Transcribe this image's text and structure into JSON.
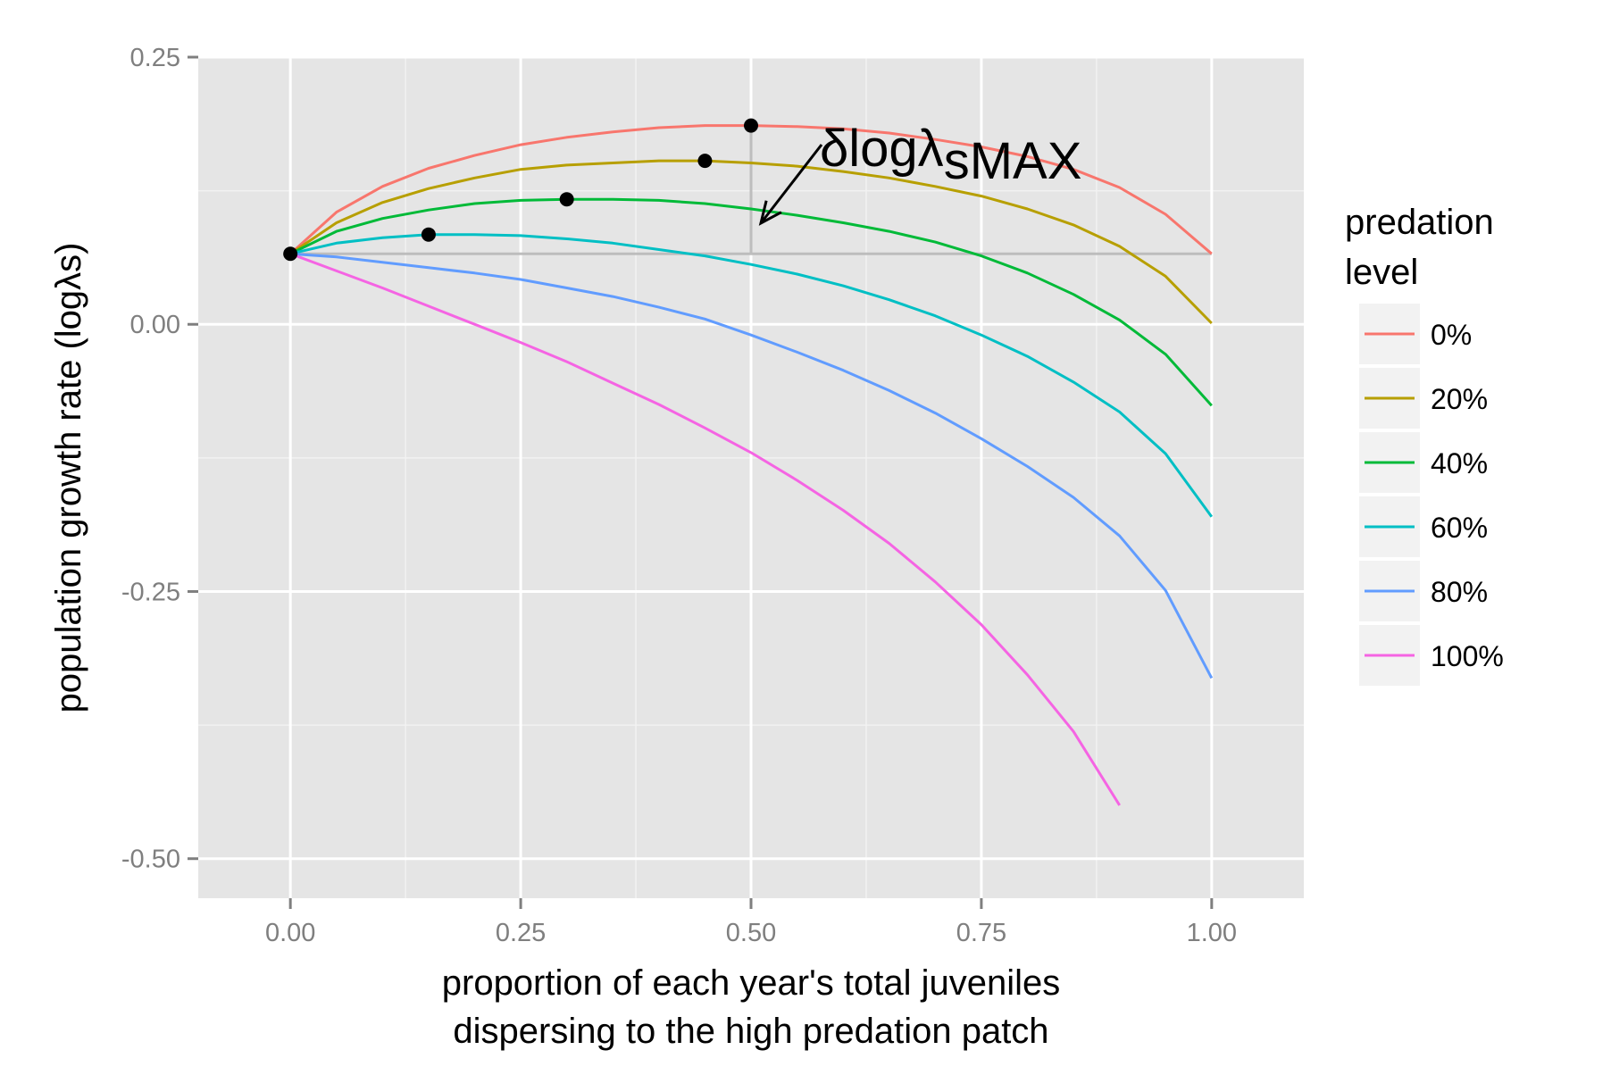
{
  "chart_data": {
    "type": "line",
    "xlabel_lines": [
      "proportion of each year's total juveniles",
      "dispersing to the high predation patch"
    ],
    "ylabel": "population growth rate (logλs)",
    "xlim": [
      -0.1,
      1.1
    ],
    "ylim": [
      -0.537,
      0.25
    ],
    "x_ticks": [
      0,
      0.25,
      0.5,
      0.75,
      1
    ],
    "x_tick_labels": [
      "0.00",
      "0.25",
      "0.50",
      "0.75",
      "1.00"
    ],
    "y_ticks": [
      0.25,
      0,
      -0.25,
      -0.5
    ],
    "y_tick_labels": [
      "0.25",
      "0.00",
      "-0.25",
      "-0.50"
    ],
    "grid": true,
    "legend": {
      "title_lines": [
        "predation",
        "level"
      ],
      "position": "right"
    },
    "x": [
      0,
      0.05,
      0.1,
      0.15,
      0.2,
      0.25,
      0.3,
      0.35,
      0.4,
      0.45,
      0.5,
      0.55,
      0.6,
      0.65,
      0.7,
      0.75,
      0.8,
      0.85,
      0.9,
      0.95,
      1.0
    ],
    "series": [
      {
        "name": "0%",
        "color": "#F8766D",
        "values": [
          0.066,
          0.105,
          0.129,
          0.146,
          0.158,
          0.168,
          0.175,
          0.18,
          0.184,
          0.186,
          0.186,
          0.185,
          0.183,
          0.179,
          0.173,
          0.166,
          0.157,
          0.145,
          0.128,
          0.103,
          0.066
        ]
      },
      {
        "name": "20%",
        "color": "#B79F00",
        "values": [
          0.066,
          0.095,
          0.114,
          0.127,
          0.137,
          0.145,
          0.149,
          0.151,
          0.153,
          0.153,
          0.151,
          0.148,
          0.143,
          0.137,
          0.129,
          0.12,
          0.108,
          0.093,
          0.073,
          0.045,
          0.001
        ]
      },
      {
        "name": "40%",
        "color": "#00BA38",
        "values": [
          0.066,
          0.087,
          0.099,
          0.107,
          0.113,
          0.116,
          0.117,
          0.117,
          0.116,
          0.113,
          0.108,
          0.102,
          0.095,
          0.087,
          0.077,
          0.064,
          0.048,
          0.028,
          0.004,
          -0.028,
          -0.076
        ]
      },
      {
        "name": "60%",
        "color": "#00BFC4",
        "values": [
          0.066,
          0.076,
          0.081,
          0.084,
          0.084,
          0.083,
          0.08,
          0.076,
          0.07,
          0.064,
          0.056,
          0.047,
          0.036,
          0.023,
          0.008,
          -0.01,
          -0.03,
          -0.054,
          -0.082,
          -0.121,
          -0.18
        ]
      },
      {
        "name": "80%",
        "color": "#619CFF",
        "values": [
          0.066,
          0.063,
          0.058,
          0.053,
          0.048,
          0.042,
          0.034,
          0.026,
          0.016,
          0.005,
          -0.01,
          -0.026,
          -0.043,
          -0.062,
          -0.083,
          -0.107,
          -0.133,
          -0.162,
          -0.198,
          -0.249,
          -0.331
        ]
      },
      {
        "name": "100%",
        "color": "#F564E3",
        "values": [
          0.066,
          0.05,
          0.034,
          0.017,
          0.0,
          -0.017,
          -0.035,
          -0.055,
          -0.075,
          -0.097,
          -0.12,
          -0.146,
          -0.174,
          -0.205,
          -0.241,
          -0.281,
          -0.328,
          -0.381,
          -0.45,
          null,
          null
        ]
      }
    ],
    "optimum_points": [
      {
        "series": "0%",
        "x": 0.5,
        "y": 0.186
      },
      {
        "series": "20%",
        "x": 0.45,
        "y": 0.153
      },
      {
        "series": "40%",
        "x": 0.3,
        "y": 0.117
      },
      {
        "series": "60%",
        "x": 0.15,
        "y": 0.084
      },
      {
        "series": "baseline",
        "x": 0,
        "y": 0.066
      }
    ],
    "reference_line_y": 0.066,
    "annotation": {
      "text": "δlogλ",
      "subscript": "sMAX",
      "vertical_marker_x": 0.5,
      "vertical_marker_y": [
        0.066,
        0.186
      ]
    }
  }
}
